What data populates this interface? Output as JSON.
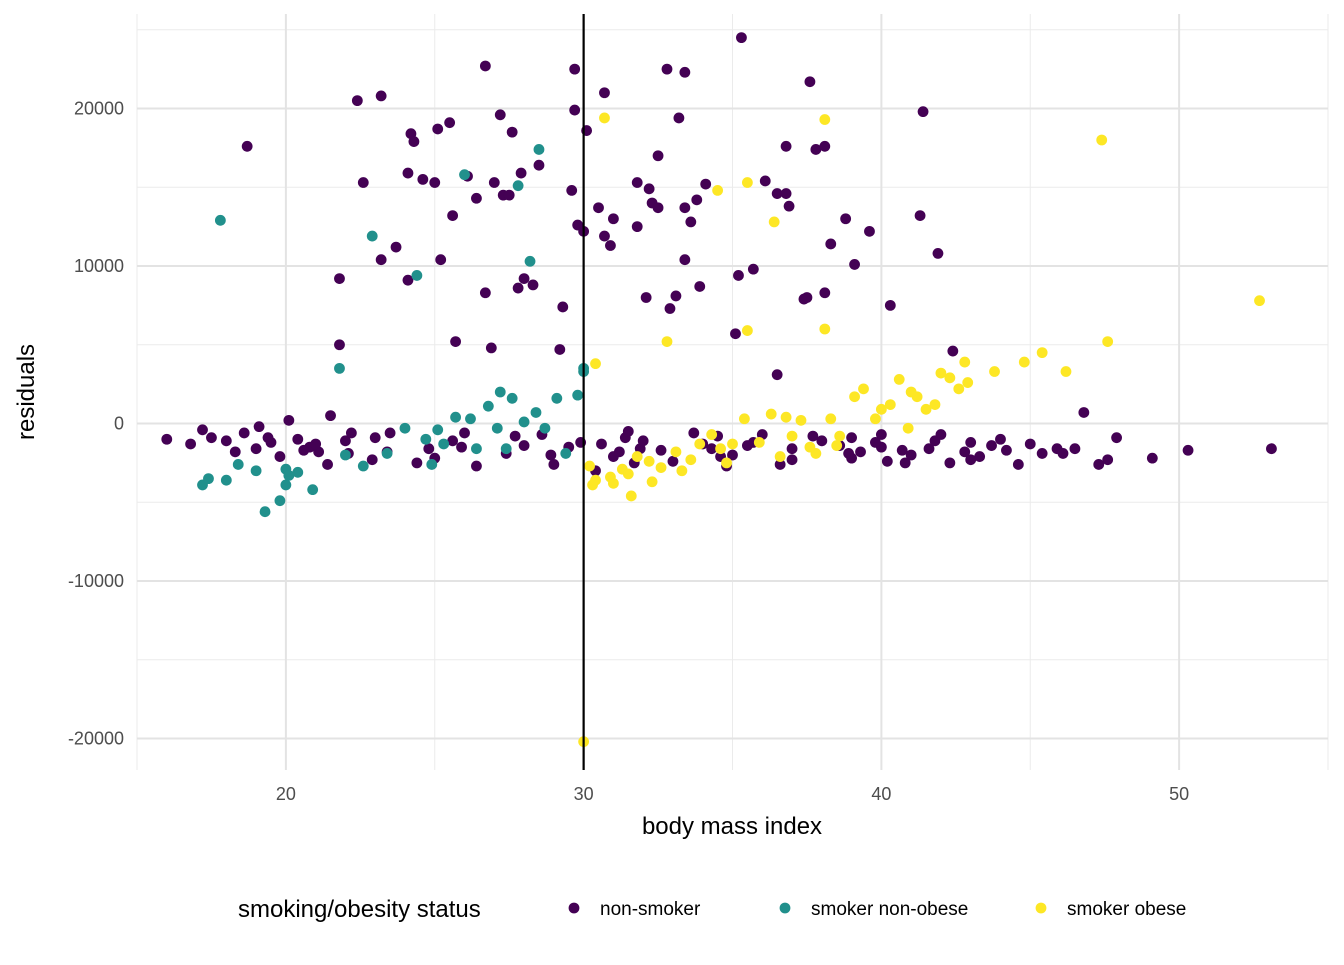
{
  "chart_data": {
    "type": "scatter",
    "xlabel": "body mass index",
    "ylabel": "residuals",
    "xlim": [
      15,
      55
    ],
    "ylim": [
      -22000,
      26000
    ],
    "x_ticks": [
      20,
      30,
      40,
      50
    ],
    "y_ticks": [
      -20000,
      -10000,
      0,
      10000,
      20000
    ],
    "x_tick_labels": [
      "20",
      "30",
      "40",
      "50"
    ],
    "y_tick_labels": [
      "-20000",
      "-10000",
      "0",
      "10000",
      "20000"
    ],
    "grid": true,
    "vline": 30,
    "legend": {
      "title": "smoking/obesity status",
      "position": "bottom"
    },
    "series": [
      {
        "name": "non-smoker",
        "color": "#440154",
        "points": [
          [
            16,
            -1000
          ],
          [
            16.8,
            -1300
          ],
          [
            17.2,
            -400
          ],
          [
            17.5,
            -900
          ],
          [
            18,
            -1100
          ],
          [
            18.3,
            -1800
          ],
          [
            18.6,
            -600
          ],
          [
            18.7,
            17600
          ],
          [
            19,
            -1600
          ],
          [
            19.1,
            -200
          ],
          [
            19.5,
            -1200
          ],
          [
            19.8,
            -2100
          ],
          [
            20.1,
            200
          ],
          [
            20.4,
            -1000
          ],
          [
            20.8,
            -1500
          ],
          [
            21.1,
            -1800
          ],
          [
            21.4,
            -2600
          ],
          [
            21.5,
            500
          ],
          [
            21.8,
            9200
          ],
          [
            21.8,
            5000
          ],
          [
            22,
            -1100
          ],
          [
            22.2,
            -600
          ],
          [
            22.4,
            20500
          ],
          [
            22.6,
            15300
          ],
          [
            22.9,
            -2300
          ],
          [
            23.2,
            20800
          ],
          [
            23.2,
            10400
          ],
          [
            23.4,
            -1800
          ],
          [
            23.7,
            11200
          ],
          [
            24.1,
            15900
          ],
          [
            24.1,
            9100
          ],
          [
            24.2,
            18400
          ],
          [
            24.3,
            17900
          ],
          [
            24.6,
            15500
          ],
          [
            24.8,
            -1600
          ],
          [
            25,
            15300
          ],
          [
            25.1,
            18700
          ],
          [
            25.2,
            10400
          ],
          [
            25.5,
            19100
          ],
          [
            25.6,
            13200
          ],
          [
            25.7,
            5200
          ],
          [
            25.9,
            -1500
          ],
          [
            26.1,
            15700
          ],
          [
            26.4,
            14300
          ],
          [
            26.7,
            22700
          ],
          [
            26.7,
            8300
          ],
          [
            26.9,
            4800
          ],
          [
            27,
            15300
          ],
          [
            27.2,
            19600
          ],
          [
            27.3,
            14500
          ],
          [
            27.5,
            14500
          ],
          [
            27.6,
            18500
          ],
          [
            27.7,
            -800
          ],
          [
            27.8,
            8600
          ],
          [
            27.9,
            15900
          ],
          [
            28,
            9200
          ],
          [
            28.3,
            8800
          ],
          [
            28.5,
            16400
          ],
          [
            28.9,
            -2000
          ],
          [
            29.2,
            4700
          ],
          [
            29.3,
            7400
          ],
          [
            29.6,
            14800
          ],
          [
            29.7,
            19900
          ],
          [
            29.7,
            22500
          ],
          [
            29.8,
            12600
          ],
          [
            29.9,
            -1200
          ],
          [
            30,
            12200
          ],
          [
            30.1,
            18600
          ],
          [
            30.4,
            -3000
          ],
          [
            30.5,
            13700
          ],
          [
            30.7,
            21000
          ],
          [
            30.7,
            11900
          ],
          [
            30.9,
            11300
          ],
          [
            31,
            13000
          ],
          [
            31.2,
            -1800
          ],
          [
            31.4,
            -900
          ],
          [
            31.5,
            -500
          ],
          [
            31.8,
            12500
          ],
          [
            31.8,
            15300
          ],
          [
            31.9,
            -1600
          ],
          [
            32.1,
            8000
          ],
          [
            32.2,
            14900
          ],
          [
            32.3,
            14000
          ],
          [
            32.5,
            13700
          ],
          [
            32.5,
            17000
          ],
          [
            32.8,
            22500
          ],
          [
            32.9,
            7300
          ],
          [
            33.1,
            8100
          ],
          [
            33.2,
            19400
          ],
          [
            33.4,
            22300
          ],
          [
            33.4,
            13700
          ],
          [
            33.4,
            10400
          ],
          [
            33.6,
            12800
          ],
          [
            33.8,
            14200
          ],
          [
            33.9,
            8700
          ],
          [
            34.1,
            15200
          ],
          [
            34.3,
            -1600
          ],
          [
            34.5,
            -800
          ],
          [
            34.8,
            -2700
          ],
          [
            35.1,
            5700
          ],
          [
            35.2,
            9400
          ],
          [
            35.3,
            24500
          ],
          [
            35.7,
            9800
          ],
          [
            35.7,
            -1200
          ],
          [
            36.1,
            15400
          ],
          [
            36.5,
            3100
          ],
          [
            36.5,
            14600
          ],
          [
            36.8,
            14600
          ],
          [
            36.8,
            17600
          ],
          [
            36.9,
            13800
          ],
          [
            37,
            -1600
          ],
          [
            37.4,
            7900
          ],
          [
            37.5,
            8000
          ],
          [
            37.6,
            21700
          ],
          [
            37.8,
            17400
          ],
          [
            38.1,
            17600
          ],
          [
            38.1,
            8300
          ],
          [
            38.3,
            11400
          ],
          [
            38.6,
            -1400
          ],
          [
            38.8,
            13000
          ],
          [
            39,
            -2200
          ],
          [
            39.1,
            10100
          ],
          [
            39.3,
            -1800
          ],
          [
            39.6,
            12200
          ],
          [
            40,
            -700
          ],
          [
            40.2,
            -2400
          ],
          [
            40.3,
            7500
          ],
          [
            40.7,
            -1700
          ],
          [
            41.3,
            13200
          ],
          [
            41.4,
            19800
          ],
          [
            41.6,
            -1600
          ],
          [
            41.9,
            10800
          ],
          [
            42.3,
            -2500
          ],
          [
            42.4,
            4600
          ],
          [
            43,
            -1200
          ],
          [
            43.3,
            -2100
          ],
          [
            43.7,
            -1400
          ],
          [
            44.2,
            -1700
          ],
          [
            44.6,
            -2600
          ],
          [
            45,
            -1300
          ],
          [
            45.4,
            -1900
          ],
          [
            45.9,
            -1600
          ],
          [
            46.1,
            -1900
          ],
          [
            46.5,
            -1600
          ],
          [
            46.8,
            700
          ],
          [
            47.3,
            -2600
          ],
          [
            47.6,
            -2300
          ],
          [
            47.9,
            -900
          ],
          [
            49.1,
            -2200
          ],
          [
            50.3,
            -1700
          ],
          [
            53.1,
            -1600
          ],
          [
            21,
            -1300
          ],
          [
            23,
            -900
          ],
          [
            25,
            -2200
          ],
          [
            26,
            -600
          ],
          [
            28,
            -1400
          ],
          [
            29,
            -2600
          ],
          [
            31,
            -2100
          ],
          [
            32,
            -1100
          ],
          [
            33,
            -2400
          ],
          [
            34,
            -1300
          ],
          [
            35,
            -2000
          ],
          [
            36,
            -700
          ],
          [
            37,
            -2300
          ],
          [
            38,
            -1100
          ],
          [
            39,
            -900
          ],
          [
            40,
            -1500
          ],
          [
            41,
            -2000
          ],
          [
            42,
            -700
          ],
          [
            43,
            -2300
          ],
          [
            44,
            -1000
          ],
          [
            19.4,
            -900
          ],
          [
            20.6,
            -1700
          ],
          [
            22.1,
            -1900
          ],
          [
            23.5,
            -600
          ],
          [
            24.4,
            -2500
          ],
          [
            25.6,
            -1100
          ],
          [
            26.4,
            -2700
          ],
          [
            27.4,
            -1900
          ],
          [
            28.6,
            -700
          ],
          [
            29.5,
            -1500
          ],
          [
            30.6,
            -1300
          ],
          [
            31.7,
            -2500
          ],
          [
            32.6,
            -1700
          ],
          [
            33.7,
            -600
          ],
          [
            34.6,
            -2100
          ],
          [
            35.5,
            -1400
          ],
          [
            36.6,
            -2600
          ],
          [
            37.7,
            -800
          ],
          [
            38.9,
            -1900
          ],
          [
            39.8,
            -1200
          ],
          [
            40.8,
            -2500
          ],
          [
            41.8,
            -1100
          ],
          [
            42.8,
            -1800
          ]
        ]
      },
      {
        "name": "smoker non-obese",
        "color": "#21908C",
        "points": [
          [
            17.2,
            -3900
          ],
          [
            17.4,
            -3500
          ],
          [
            17.8,
            12900
          ],
          [
            18,
            -3600
          ],
          [
            18.4,
            -2600
          ],
          [
            19,
            -3000
          ],
          [
            19.3,
            -5600
          ],
          [
            19.8,
            -4900
          ],
          [
            20,
            -2900
          ],
          [
            20,
            -3900
          ],
          [
            20.1,
            -3300
          ],
          [
            20.4,
            -3100
          ],
          [
            20.9,
            -4200
          ],
          [
            21.8,
            3500
          ],
          [
            22,
            -2000
          ],
          [
            22.6,
            -2700
          ],
          [
            22.9,
            11900
          ],
          [
            23.4,
            -1900
          ],
          [
            24,
            -300
          ],
          [
            24.4,
            9400
          ],
          [
            24.7,
            -1000
          ],
          [
            24.9,
            -2600
          ],
          [
            25.3,
            -1300
          ],
          [
            25.7,
            400
          ],
          [
            26,
            15800
          ],
          [
            26.4,
            -1600
          ],
          [
            26.8,
            1100
          ],
          [
            27.2,
            2000
          ],
          [
            27.4,
            -1600
          ],
          [
            27.6,
            1600
          ],
          [
            27.8,
            15100
          ],
          [
            28,
            100
          ],
          [
            28.2,
            10300
          ],
          [
            28.5,
            17400
          ],
          [
            28.7,
            -300
          ],
          [
            29.1,
            1600
          ],
          [
            29.4,
            -1900
          ],
          [
            29.8,
            1800
          ],
          [
            30,
            3500
          ],
          [
            30,
            3300
          ],
          [
            25.1,
            -400
          ],
          [
            26.2,
            300
          ],
          [
            27.1,
            -300
          ],
          [
            28.4,
            700
          ]
        ]
      },
      {
        "name": "smoker obese",
        "color": "#FDE725",
        "points": [
          [
            30,
            -20200
          ],
          [
            30.2,
            -2700
          ],
          [
            30.3,
            -3900
          ],
          [
            30.4,
            3800
          ],
          [
            30.4,
            -3600
          ],
          [
            30.7,
            19400
          ],
          [
            31,
            -3800
          ],
          [
            31.3,
            -2900
          ],
          [
            31.5,
            -3200
          ],
          [
            31.8,
            -2100
          ],
          [
            32.3,
            -3700
          ],
          [
            32.6,
            -2800
          ],
          [
            32.8,
            5200
          ],
          [
            33.1,
            -1800
          ],
          [
            33.3,
            -3000
          ],
          [
            33.6,
            -2300
          ],
          [
            33.9,
            -1300
          ],
          [
            34.3,
            -700
          ],
          [
            34.5,
            14800
          ],
          [
            34.8,
            -2500
          ],
          [
            35,
            -1300
          ],
          [
            35.4,
            300
          ],
          [
            35.5,
            15300
          ],
          [
            35.5,
            5900
          ],
          [
            35.9,
            -1200
          ],
          [
            36.3,
            600
          ],
          [
            36.4,
            12800
          ],
          [
            36.8,
            400
          ],
          [
            37,
            -800
          ],
          [
            37.3,
            200
          ],
          [
            37.8,
            -1900
          ],
          [
            38.1,
            19300
          ],
          [
            38.1,
            6000
          ],
          [
            38.3,
            300
          ],
          [
            38.6,
            -800
          ],
          [
            39.1,
            1700
          ],
          [
            39.4,
            2200
          ],
          [
            39.8,
            300
          ],
          [
            40.3,
            1200
          ],
          [
            40.6,
            2800
          ],
          [
            40.9,
            -300
          ],
          [
            41.2,
            1700
          ],
          [
            41.5,
            900
          ],
          [
            41.8,
            1200
          ],
          [
            42,
            3200
          ],
          [
            42.3,
            2900
          ],
          [
            42.6,
            2200
          ],
          [
            42.8,
            3900
          ],
          [
            42.9,
            2600
          ],
          [
            43.8,
            3300
          ],
          [
            44.8,
            3900
          ],
          [
            45.4,
            4500
          ],
          [
            46.2,
            3300
          ],
          [
            47.4,
            18000
          ],
          [
            47.6,
            5200
          ],
          [
            52.7,
            7800
          ],
          [
            30.9,
            -3400
          ],
          [
            31.6,
            -4600
          ],
          [
            32.2,
            -2400
          ],
          [
            34.6,
            -1600
          ],
          [
            36.6,
            -2100
          ],
          [
            37.6,
            -1500
          ],
          [
            38.5,
            -1400
          ],
          [
            40,
            900
          ],
          [
            41,
            2000
          ]
        ]
      }
    ]
  }
}
